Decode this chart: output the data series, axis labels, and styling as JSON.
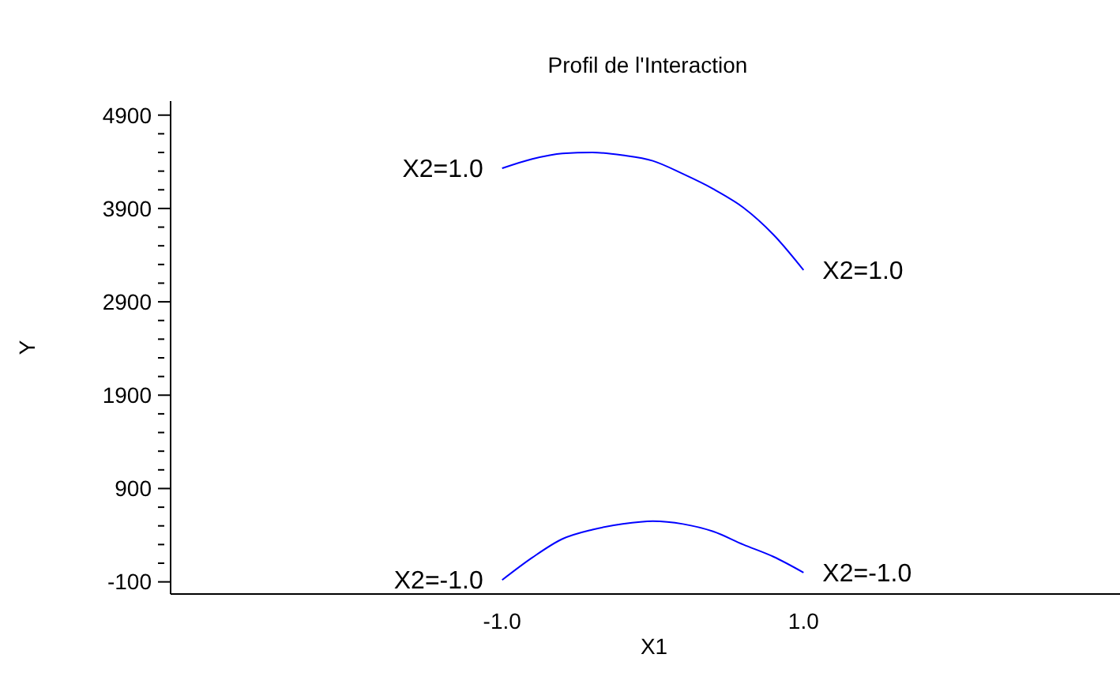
{
  "chart_data": {
    "type": "line",
    "title": "Profil de l'Interaction",
    "xlabel": "X1",
    "ylabel": "Y",
    "x": [
      -1,
      -0.8,
      -0.6,
      -0.4,
      -0.2,
      0,
      0.2,
      0.4,
      0.6,
      0.8,
      1
    ],
    "series": [
      {
        "name": "X2=1.0",
        "color": "#0000ff",
        "values": [
          4330,
          4430,
          4490,
          4500,
          4470,
          4410,
          4270,
          4110,
          3910,
          3620,
          3240
        ]
      },
      {
        "name": "X2=-1.0",
        "color": "#0000ff",
        "values": [
          -80,
          160,
          360,
          460,
          520,
          550,
          520,
          440,
          300,
          170,
          0
        ]
      }
    ],
    "xlim": [
      -3.2,
      3.1
    ],
    "xticks": [
      {
        "value": -1,
        "label": "-1.0"
      },
      {
        "value": 1,
        "label": "1.0"
      }
    ],
    "ylim": [
      -230,
      5050
    ],
    "yticks": [
      -100,
      {
        "value": 100,
        "label": null
      },
      {
        "value": 300,
        "label": null
      },
      {
        "value": 500,
        "label": null
      },
      {
        "value": 700,
        "label": null
      },
      900,
      {
        "value": 1100,
        "label": null
      },
      {
        "value": 1300,
        "label": null
      },
      {
        "value": 1500,
        "label": null
      },
      {
        "value": 1700,
        "label": null
      },
      1900,
      {
        "value": 2100,
        "label": null
      },
      {
        "value": 2300,
        "label": null
      },
      {
        "value": 2500,
        "label": null
      },
      {
        "value": 2700,
        "label": null
      },
      2900,
      {
        "value": 3100,
        "label": null
      },
      {
        "value": 3300,
        "label": null
      },
      {
        "value": 3500,
        "label": null
      },
      {
        "value": 3700,
        "label": null
      },
      3900,
      {
        "value": 4100,
        "label": null
      },
      {
        "value": 4300,
        "label": null
      },
      {
        "value": 4500,
        "label": null
      },
      {
        "value": 4700,
        "label": null
      },
      4900
    ],
    "marker": "none",
    "line_style": "solid",
    "grid": false
  }
}
